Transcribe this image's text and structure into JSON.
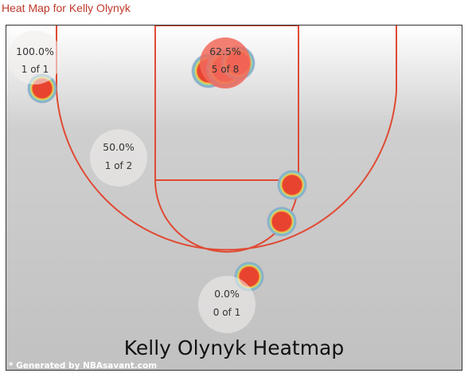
{
  "page": {
    "title": "Heat Map for Kelly Olynyk",
    "credit": "* Generated by NBAsavant.com"
  },
  "colors": {
    "court_line": "#e04a33",
    "shot_fill": "#e8432f",
    "zone_bubble": "#f3f0ef",
    "zone_bubble_hot": "#f26a5c",
    "title_color": "#c0392b"
  },
  "chart_data": {
    "type": "heatmap",
    "title": "Kelly Olynyk Heatmap",
    "zones": [
      {
        "name": "left-corner-three",
        "pct": "100.0%",
        "made": 1,
        "attempts": 1,
        "label": "1 of 1",
        "hot": false
      },
      {
        "name": "restricted-area",
        "pct": "62.5%",
        "made": 5,
        "attempts": 8,
        "label": "5 of 8",
        "hot": true
      },
      {
        "name": "left-midrange",
        "pct": "50.0%",
        "made": 1,
        "attempts": 2,
        "label": "1 of 2",
        "hot": false
      },
      {
        "name": "top-of-key-three",
        "pct": "0.0%",
        "made": 0,
        "attempts": 1,
        "label": "0 of 1",
        "hot": false
      }
    ],
    "shot_markers": [
      {
        "zone": "left-corner-three",
        "count": 1
      },
      {
        "zone": "restricted-area",
        "count": 3
      },
      {
        "zone": "right-paint",
        "count": 1
      },
      {
        "zone": "right-elbow",
        "count": 1
      },
      {
        "zone": "top-of-key-three",
        "count": 1
      }
    ],
    "legend": "none"
  }
}
